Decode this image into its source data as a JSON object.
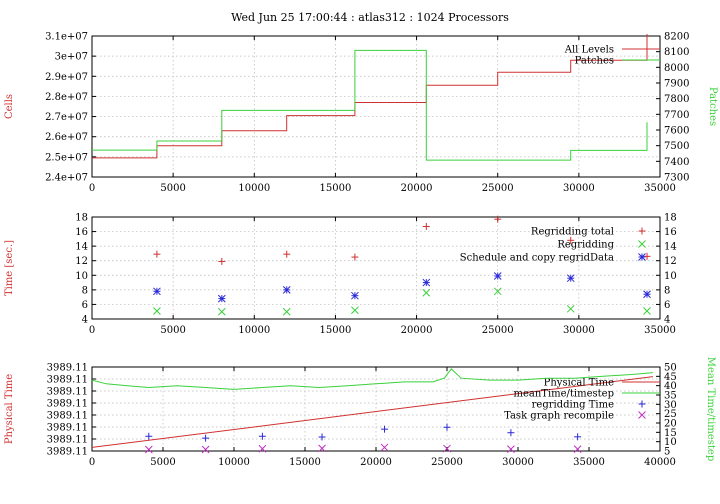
{
  "title": "Wed Jun 25 17:00:44 : atlas312 : 1024 Processors",
  "colors": {
    "red": "#d03030",
    "green": "#3ad13a",
    "blue": "#2a2ad8",
    "magenta": "#c030c0"
  },
  "chart_data": [
    {
      "type": "line",
      "ylabel": "Cells",
      "y2label": "Patches",
      "xlim": [
        0,
        35000
      ],
      "ylim": [
        24000000,
        31000000
      ],
      "y2lim": [
        7300,
        8200
      ],
      "xticks": [
        "0",
        "5000",
        "10000",
        "15000",
        "20000",
        "25000",
        "30000",
        "35000"
      ],
      "yticks": [
        "2.4e+07",
        "2.5e+07",
        "2.6e+07",
        "2.7e+07",
        "2.8e+07",
        "2.9e+07",
        "3e+07",
        "3.1e+07"
      ],
      "y2ticks": [
        "7300",
        "7400",
        "7500",
        "7600",
        "7700",
        "7800",
        "7900",
        "8000",
        "8100",
        "8200"
      ],
      "legend_position": "top-right",
      "series": [
        {
          "name": "All Levels",
          "axis": "left",
          "color": "#d03030",
          "x": [
            0,
            4000,
            4000,
            8000,
            8000,
            12000,
            12000,
            16200,
            16200,
            20600,
            20600,
            25000,
            25000,
            29500,
            29500,
            34200,
            34200
          ],
          "y": [
            24950000,
            24950000,
            25550000,
            25550000,
            26300000,
            26300000,
            27050000,
            27050000,
            27700000,
            27700000,
            28550000,
            28550000,
            29200000,
            29200000,
            29800000,
            29800000,
            31100000
          ]
        },
        {
          "name": "Patches",
          "axis": "right",
          "color": "#3ad13a",
          "x": [
            0,
            4000,
            4000,
            8000,
            8000,
            16200,
            16200,
            20600,
            20600,
            29500,
            29500,
            34200,
            34200
          ],
          "y": [
            7472,
            7472,
            7530,
            7530,
            7725,
            7725,
            8108,
            8108,
            7408,
            7408,
            7470,
            7470,
            7650
          ]
        }
      ]
    },
    {
      "type": "scatter",
      "ylabel": "Time [sec.]",
      "xlim": [
        0,
        35000
      ],
      "ylim": [
        4,
        18
      ],
      "xticks": [
        "0",
        "5000",
        "10000",
        "15000",
        "20000",
        "25000",
        "30000",
        "35000"
      ],
      "yticks": [
        "4",
        "6",
        "8",
        "10",
        "12",
        "14",
        "16",
        "18"
      ],
      "y2ticks": [
        "4",
        "6",
        "8",
        "10",
        "12",
        "14",
        "16",
        "18"
      ],
      "legend_position": "top-right",
      "series": [
        {
          "name": "Regridding total",
          "marker": "+",
          "color": "#d03030",
          "x": [
            4000,
            8000,
            12000,
            16200,
            20600,
            25000,
            29500,
            34200
          ],
          "y": [
            12.9,
            11.9,
            12.9,
            12.5,
            16.7,
            17.7,
            14.8,
            12.6
          ]
        },
        {
          "name": "Regridding",
          "marker": "x",
          "color": "#3ad13a",
          "x": [
            4000,
            8000,
            12000,
            16200,
            20600,
            25000,
            29500,
            34200
          ],
          "y": [
            5.1,
            5.0,
            5.0,
            5.2,
            7.6,
            7.8,
            5.4,
            5.1
          ]
        },
        {
          "name": "Schedule and copy regridData",
          "marker": "*",
          "color": "#2a2ad8",
          "x": [
            4000,
            8000,
            12000,
            16200,
            20600,
            25000,
            29500,
            34200
          ],
          "y": [
            7.8,
            6.8,
            8.0,
            7.2,
            9.0,
            9.9,
            9.6,
            7.4
          ]
        }
      ]
    },
    {
      "type": "line",
      "ylabel": "Physical Time",
      "y2label": "Mean Time/timestep",
      "xlim": [
        0,
        40000
      ],
      "ylim": [
        0,
        7
      ],
      "y2lim": [
        5,
        50
      ],
      "xticks": [
        "0",
        "5000",
        "10000",
        "15000",
        "20000",
        "25000",
        "30000",
        "35000",
        "40000"
      ],
      "yticks": [
        "3989.11",
        "3989.11",
        "3989.11",
        "3989.11",
        "3989.11",
        "3989.11",
        "3989.11",
        "3989.11"
      ],
      "y2ticks": [
        "5",
        "10",
        "15",
        "20",
        "25",
        "30",
        "35",
        "40",
        "45",
        "50"
      ],
      "legend_position": "top-right",
      "series": [
        {
          "name": "Physical Time",
          "axis": "left",
          "color": "#d03030",
          "x": [
            0,
            39500
          ],
          "y": [
            0.3,
            6.2
          ]
        },
        {
          "name": "meanTime/timestep",
          "axis": "right",
          "color": "#3ad13a",
          "x": [
            0,
            1000,
            2500,
            4000,
            6000,
            8000,
            10000,
            12000,
            14000,
            16000,
            18000,
            20000,
            22000,
            24000,
            24800,
            25300,
            26000,
            28000,
            30000,
            32000,
            34000,
            36000,
            38000,
            39500
          ],
          "y": [
            43,
            41,
            40,
            39,
            40,
            39,
            38,
            39,
            40,
            39,
            40,
            41,
            42,
            42,
            44,
            49,
            44,
            43,
            43,
            44,
            44,
            45,
            46,
            47
          ]
        },
        {
          "name": "regridding Time",
          "axis": "right",
          "marker": "+",
          "color": "#2a2ad8",
          "x": [
            4000,
            8000,
            12000,
            16200,
            20600,
            25000,
            29500,
            34200
          ],
          "y": [
            12.9,
            11.9,
            12.9,
            12.5,
            16.7,
            17.7,
            14.8,
            12.6
          ]
        },
        {
          "name": "Task graph recompile",
          "axis": "right",
          "marker": "x",
          "color": "#c030c0",
          "x": [
            4000,
            8000,
            12000,
            16200,
            20600,
            25000,
            29500,
            34200
          ],
          "y": [
            5.8,
            5.8,
            6.2,
            6.4,
            6.9,
            6.3,
            6.0,
            6.0
          ]
        }
      ]
    }
  ]
}
